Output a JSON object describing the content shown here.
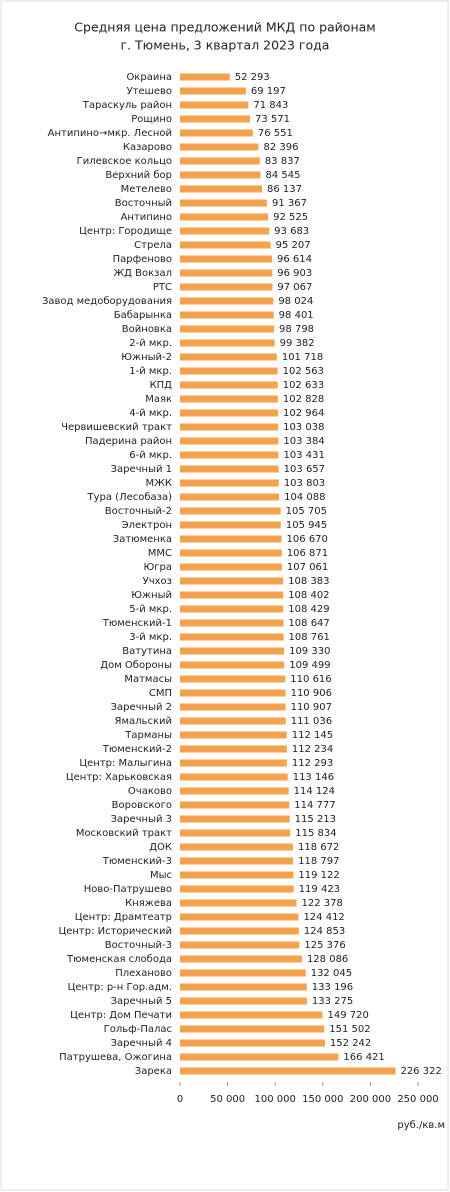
{
  "chart_data": {
    "type": "hbar",
    "title": "Средняя цена предложений МКД по районам",
    "subtitle": "г. Тюмень, 3 квартал 2023 года",
    "x_label": "руб./кв.м",
    "color": "#f4a24c",
    "categories": [
      "Окраина",
      "Утешево",
      "Тараскуль район",
      "Рощино",
      "Антипино→мкр. Лесной",
      "Казарово",
      "Гилевское кольцо",
      "Верхний бор",
      "Метелево",
      "Восточный",
      "Антипино",
      "Центр: Городище",
      "Стрела",
      "Парфеново",
      "ЖД Вокзал",
      "РТС",
      "Завод медоборудования",
      "Бабарынка",
      "Войновка",
      "2-й мкр.",
      "Южный-2",
      "1-й мкр.",
      "КПД",
      "Маяк",
      "4-й мкр.",
      "Червишевский тракт",
      "Падерина район",
      "6-й мкр.",
      "Заречный 1",
      "МЖК",
      "Тура (Лесобаза)",
      "Восточный-2",
      "Электрон",
      "Затюменка",
      "ММС",
      "Югра",
      "Учхоз",
      "Южный",
      "5-й мкр.",
      "Тюменский-1",
      "3-й мкр.",
      "Ватутина",
      "Дом Обороны",
      "Матмасы",
      "СМП",
      "Заречный 2",
      "Ямальский",
      "Тарманы",
      "Тюменский-2",
      "Центр: Малыгина",
      "Центр: Харьковская",
      "Очаково",
      "Воровского",
      "Заречный 3",
      "Московский тракт",
      "ДОК",
      "Тюменский-3",
      "Мыс",
      "Ново-Патрушево",
      "Княжева",
      "Центр: Драмтеатр",
      "Центр: Исторический",
      "Восточный-3",
      "Тюменская слобода",
      "Плеханово",
      "Центр: р-н Гор.адм.",
      "Заречный 5",
      "Центр: Дом Печати",
      "Гольф-Палас",
      "Заречный 4",
      "Патрушева, Ожогина",
      "Зарека"
    ],
    "values": [
      52293,
      69197,
      71843,
      73571,
      76551,
      82396,
      83837,
      84545,
      86137,
      91367,
      92525,
      93683,
      95207,
      96614,
      96903,
      97067,
      98024,
      98401,
      98798,
      99382,
      101718,
      102563,
      102633,
      102828,
      102964,
      103038,
      103384,
      103431,
      103657,
      103803,
      104088,
      105705,
      105945,
      106670,
      106871,
      107061,
      108383,
      108402,
      108429,
      108647,
      108761,
      109330,
      109499,
      110616,
      110906,
      110907,
      111036,
      112145,
      112234,
      112293,
      113146,
      114124,
      114777,
      115213,
      115834,
      118672,
      118797,
      119122,
      119423,
      122378,
      124412,
      124853,
      125376,
      128086,
      132045,
      133196,
      133275,
      149720,
      151502,
      152242,
      166421,
      226322
    ],
    "value_labels": [
      "52 293",
      "69 197",
      "71 843",
      "73 571",
      "76 551",
      "82 396",
      "83 837",
      "84 545",
      "86 137",
      "91 367",
      "92 525",
      "93 683",
      "95 207",
      "96 614",
      "96 903",
      "97 067",
      "98 024",
      "98 401",
      "98 798",
      "99 382",
      "101 718",
      "102 563",
      "102 633",
      "102 828",
      "102 964",
      "103 038",
      "103 384",
      "103 431",
      "103 657",
      "103 803",
      "104 088",
      "105 705",
      "105 945",
      "106 670",
      "106 871",
      "107 061",
      "108 383",
      "108 402",
      "108 429",
      "108 647",
      "108 761",
      "109 330",
      "109 499",
      "110 616",
      "110 906",
      "110 907",
      "111 036",
      "112 145",
      "112 234",
      "112 293",
      "113 146",
      "114 124",
      "114 777",
      "115 213",
      "115 834",
      "118 672",
      "118 797",
      "119 122",
      "119 423",
      "122 378",
      "124 412",
      "124 853",
      "125 376",
      "128 086",
      "132 045",
      "133 196",
      "133 275",
      "149 720",
      "151 502",
      "152 242",
      "166 421",
      "226 322"
    ],
    "xlim": [
      0,
      250000
    ],
    "xticks": [
      0,
      {
        "value": 50000,
        "label": "50 000"
      },
      {
        "value": 100000,
        "label": "100 000"
      },
      {
        "value": 150000,
        "label": "150 000"
      },
      {
        "value": 200000,
        "label": "200 000"
      },
      {
        "value": 250000,
        "label": "250 000"
      }
    ]
  }
}
